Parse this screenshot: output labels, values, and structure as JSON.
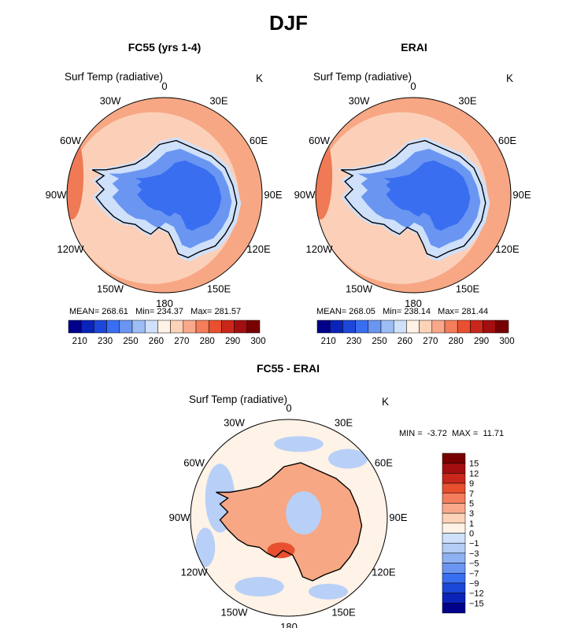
{
  "title": "DJF",
  "panels": [
    {
      "id": "fc55",
      "title": "FC55 (yrs 1-4)",
      "field_label": "Surf Temp (radiative)",
      "units": "K",
      "lon_labels": [
        "0",
        "30E",
        "60E",
        "90E",
        "120E",
        "150E",
        "180",
        "150W",
        "120W",
        "90W",
        "60W",
        "30W"
      ],
      "stats": {
        "mean_label": "MEAN=",
        "mean": "268.61",
        "min_label": "Min=",
        "min": "234.37",
        "max_label": "Max=",
        "max": "281.57"
      },
      "colorbar_ticks": [
        "210",
        "230",
        "250",
        "260",
        "270",
        "280",
        "290",
        "300"
      ]
    },
    {
      "id": "erai",
      "title": "ERAI",
      "field_label": "Surf Temp (radiative)",
      "units": "K",
      "lon_labels": [
        "0",
        "30E",
        "60E",
        "90E",
        "120E",
        "150E",
        "180",
        "150W",
        "120W",
        "90W",
        "60W",
        "30W"
      ],
      "stats": {
        "mean_label": "MEAN=",
        "mean": "268.05",
        "min_label": "Min=",
        "min": "238.14",
        "max_label": "Max=",
        "max": "281.44"
      },
      "colorbar_ticks": [
        "210",
        "230",
        "250",
        "260",
        "270",
        "280",
        "290",
        "300"
      ]
    },
    {
      "id": "diff",
      "title": "FC55 - ERAI",
      "field_label": "Surf Temp (radiative)",
      "units": "K",
      "lon_labels": [
        "0",
        "30E",
        "60E",
        "90E",
        "120E",
        "150E",
        "180",
        "150W",
        "120W",
        "90W",
        "60W",
        "30W"
      ],
      "stats": {
        "min_label": "MIN =",
        "min": "-3.72",
        "max_label": "MAX =",
        "max": "11.71"
      },
      "colorbar_ticks": [
        "15",
        "12",
        "9",
        "7",
        "5",
        "3",
        "1",
        "0",
        "−1",
        "−3",
        "−5",
        "−7",
        "−9",
        "−12",
        "−15"
      ]
    }
  ],
  "colors": {
    "abs_scale": [
      "#00008b",
      "#0a23b8",
      "#1d47d8",
      "#3a6ef0",
      "#6a96f2",
      "#9dbdf5",
      "#cfe0fa",
      "#fff2e6",
      "#fdd3b8",
      "#f9a98a",
      "#f47d5c",
      "#e8502f",
      "#c9271b",
      "#a30e10",
      "#780000"
    ],
    "diff_scale": [
      "#780000",
      "#a30e10",
      "#c9271b",
      "#e8502f",
      "#f47d5c",
      "#f9a98a",
      "#fdd3b8",
      "#fff2e6",
      "#cfe0fa",
      "#b4cdf7",
      "#8eb1f4",
      "#6a96f2",
      "#3a6ef0",
      "#1d47d8",
      "#0a23b8",
      "#00008b"
    ],
    "ocean_light": "#fcd0b8",
    "ocean_mid": "#f7a784",
    "ocean_edge": "#ef7a55",
    "ice_dark": "#3a6ef0",
    "ice_mid": "#6a96f2",
    "ice_light": "#cfe0fa",
    "diff_base": "#fff2e6",
    "diff_warm": "#f7a784",
    "diff_cool": "#b8d0f7"
  }
}
